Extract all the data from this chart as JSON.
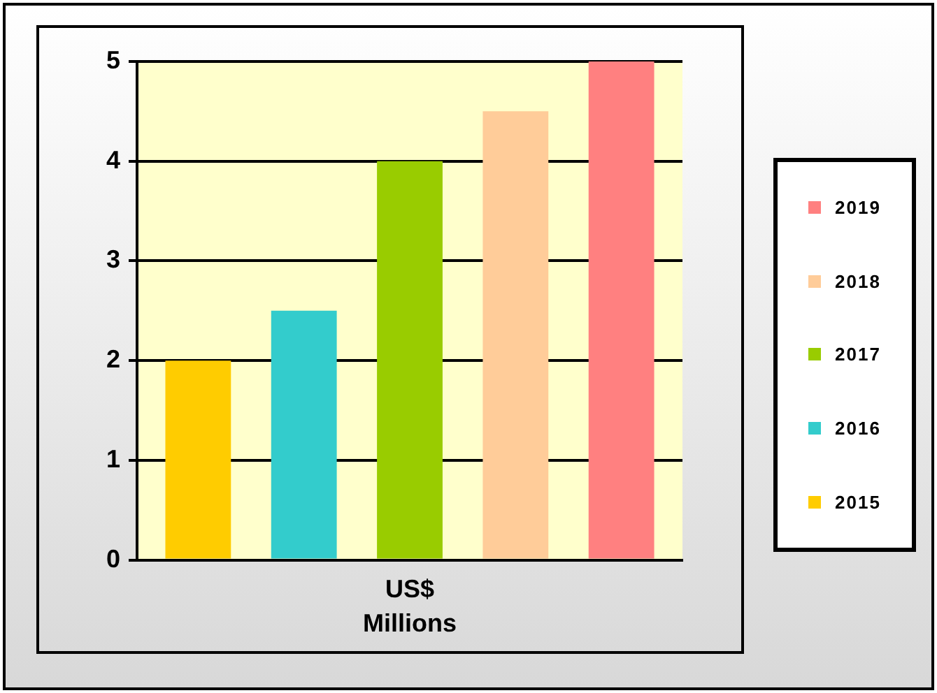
{
  "chart_data": {
    "type": "bar",
    "categories": [
      "US$"
    ],
    "xlabel": "Millions",
    "series": [
      {
        "name": "2015",
        "color": "#ffcc00",
        "values": [
          2
        ]
      },
      {
        "name": "2016",
        "color": "#33cccc",
        "values": [
          2.5
        ]
      },
      {
        "name": "2017",
        "color": "#99cc00",
        "values": [
          4
        ]
      },
      {
        "name": "2018",
        "color": "#ffcc99",
        "values": [
          4.5
        ]
      },
      {
        "name": "2019",
        "color": "#ff8080",
        "values": [
          5
        ]
      }
    ],
    "ylim": [
      0,
      5
    ],
    "yticks": [
      0,
      1,
      2,
      3,
      4,
      5
    ],
    "grid": "y",
    "legend": "right"
  }
}
